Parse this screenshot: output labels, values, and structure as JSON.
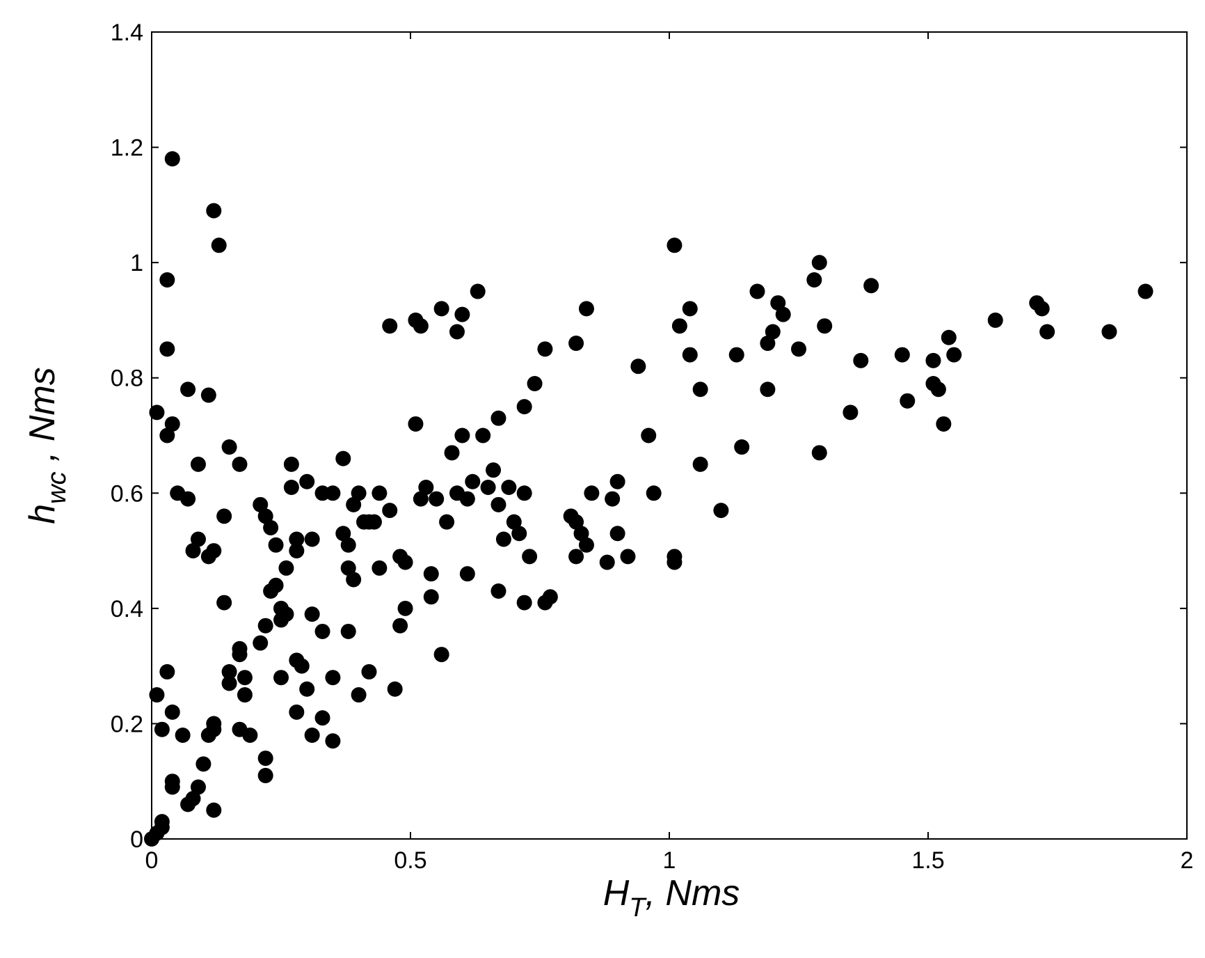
{
  "chart_data": {
    "type": "scatter",
    "xlabel": {
      "main": "H",
      "sub": "T",
      "unit": ", Nms"
    },
    "ylabel": {
      "main": "h",
      "sub": "wc",
      "unit": " , Nms"
    },
    "xlim": [
      0,
      2
    ],
    "ylim": [
      0,
      1.4
    ],
    "x_ticks": [
      {
        "value": 0,
        "label": "0"
      },
      {
        "value": 0.5,
        "label": "0.5"
      },
      {
        "value": 1,
        "label": "1"
      },
      {
        "value": 1.5,
        "label": "1.5"
      },
      {
        "value": 2,
        "label": "2"
      }
    ],
    "y_ticks": [
      {
        "value": 0,
        "label": "0"
      },
      {
        "value": 0.2,
        "label": "0.2"
      },
      {
        "value": 0.4,
        "label": "0.4"
      },
      {
        "value": 0.6,
        "label": "0.6"
      },
      {
        "value": 0.8,
        "label": "0.8"
      },
      {
        "value": 1,
        "label": "1"
      },
      {
        "value": 1.2,
        "label": "1.2"
      },
      {
        "value": 1.4,
        "label": "1.4"
      }
    ],
    "grid": false,
    "marker_color": "#000000",
    "points": [
      [
        0.0,
        0.0
      ],
      [
        0.01,
        0.01
      ],
      [
        0.02,
        0.02
      ],
      [
        0.02,
        0.03
      ],
      [
        0.04,
        1.18
      ],
      [
        0.12,
        1.09
      ],
      [
        0.13,
        1.03
      ],
      [
        0.03,
        0.97
      ],
      [
        0.03,
        0.85
      ],
      [
        0.01,
        0.74
      ],
      [
        0.04,
        0.72
      ],
      [
        0.03,
        0.7
      ],
      [
        0.07,
        0.78
      ],
      [
        0.11,
        0.77
      ],
      [
        0.15,
        0.68
      ],
      [
        0.17,
        0.65
      ],
      [
        0.09,
        0.65
      ],
      [
        0.05,
        0.6
      ],
      [
        0.07,
        0.59
      ],
      [
        0.14,
        0.56
      ],
      [
        0.09,
        0.52
      ],
      [
        0.08,
        0.5
      ],
      [
        0.11,
        0.49
      ],
      [
        0.12,
        0.5
      ],
      [
        0.14,
        0.41
      ],
      [
        0.01,
        0.25
      ],
      [
        0.02,
        0.19
      ],
      [
        0.03,
        0.29
      ],
      [
        0.04,
        0.22
      ],
      [
        0.04,
        0.1
      ],
      [
        0.04,
        0.09
      ],
      [
        0.06,
        0.18
      ],
      [
        0.07,
        0.06
      ],
      [
        0.08,
        0.07
      ],
      [
        0.09,
        0.09
      ],
      [
        0.1,
        0.13
      ],
      [
        0.11,
        0.18
      ],
      [
        0.12,
        0.2
      ],
      [
        0.12,
        0.19
      ],
      [
        0.12,
        0.05
      ],
      [
        0.15,
        0.29
      ],
      [
        0.15,
        0.27
      ],
      [
        0.17,
        0.33
      ],
      [
        0.17,
        0.32
      ],
      [
        0.17,
        0.19
      ],
      [
        0.18,
        0.28
      ],
      [
        0.18,
        0.25
      ],
      [
        0.19,
        0.18
      ],
      [
        0.21,
        0.34
      ],
      [
        0.22,
        0.37
      ],
      [
        0.22,
        0.14
      ],
      [
        0.22,
        0.11
      ],
      [
        0.21,
        0.58
      ],
      [
        0.22,
        0.56
      ],
      [
        0.23,
        0.54
      ],
      [
        0.23,
        0.43
      ],
      [
        0.24,
        0.44
      ],
      [
        0.24,
        0.51
      ],
      [
        0.25,
        0.4
      ],
      [
        0.25,
        0.38
      ],
      [
        0.25,
        0.28
      ],
      [
        0.26,
        0.47
      ],
      [
        0.26,
        0.39
      ],
      [
        0.27,
        0.65
      ],
      [
        0.27,
        0.61
      ],
      [
        0.28,
        0.52
      ],
      [
        0.28,
        0.5
      ],
      [
        0.28,
        0.31
      ],
      [
        0.29,
        0.3
      ],
      [
        0.28,
        0.22
      ],
      [
        0.3,
        0.62
      ],
      [
        0.3,
        0.26
      ],
      [
        0.31,
        0.52
      ],
      [
        0.31,
        0.39
      ],
      [
        0.31,
        0.18
      ],
      [
        0.33,
        0.6
      ],
      [
        0.33,
        0.36
      ],
      [
        0.33,
        0.21
      ],
      [
        0.35,
        0.6
      ],
      [
        0.35,
        0.28
      ],
      [
        0.35,
        0.17
      ],
      [
        0.37,
        0.66
      ],
      [
        0.37,
        0.53
      ],
      [
        0.38,
        0.51
      ],
      [
        0.38,
        0.47
      ],
      [
        0.38,
        0.36
      ],
      [
        0.39,
        0.58
      ],
      [
        0.39,
        0.45
      ],
      [
        0.4,
        0.6
      ],
      [
        0.4,
        0.25
      ],
      [
        0.41,
        0.55
      ],
      [
        0.42,
        0.55
      ],
      [
        0.42,
        0.29
      ],
      [
        0.43,
        0.55
      ],
      [
        0.44,
        0.6
      ],
      [
        0.44,
        0.47
      ],
      [
        0.46,
        0.57
      ],
      [
        0.46,
        0.89
      ],
      [
        0.47,
        0.26
      ],
      [
        0.48,
        0.49
      ],
      [
        0.48,
        0.37
      ],
      [
        0.49,
        0.48
      ],
      [
        0.49,
        0.4
      ],
      [
        0.51,
        0.9
      ],
      [
        0.52,
        0.89
      ],
      [
        0.51,
        0.72
      ],
      [
        0.52,
        0.59
      ],
      [
        0.53,
        0.61
      ],
      [
        0.54,
        0.46
      ],
      [
        0.54,
        0.42
      ],
      [
        0.55,
        0.59
      ],
      [
        0.56,
        0.92
      ],
      [
        0.56,
        0.32
      ],
      [
        0.57,
        0.55
      ],
      [
        0.58,
        0.67
      ],
      [
        0.59,
        0.6
      ],
      [
        0.59,
        0.88
      ],
      [
        0.6,
        0.91
      ],
      [
        0.6,
        0.7
      ],
      [
        0.61,
        0.59
      ],
      [
        0.61,
        0.46
      ],
      [
        0.62,
        0.62
      ],
      [
        0.63,
        0.95
      ],
      [
        0.64,
        0.7
      ],
      [
        0.65,
        0.61
      ],
      [
        0.66,
        0.64
      ],
      [
        0.67,
        0.73
      ],
      [
        0.67,
        0.58
      ],
      [
        0.68,
        0.52
      ],
      [
        0.67,
        0.43
      ],
      [
        0.69,
        0.61
      ],
      [
        0.7,
        0.55
      ],
      [
        0.71,
        0.53
      ],
      [
        0.72,
        0.75
      ],
      [
        0.72,
        0.6
      ],
      [
        0.72,
        0.41
      ],
      [
        0.73,
        0.49
      ],
      [
        0.74,
        0.79
      ],
      [
        0.76,
        0.85
      ],
      [
        0.76,
        0.41
      ],
      [
        0.77,
        0.42
      ],
      [
        0.81,
        0.56
      ],
      [
        0.82,
        0.86
      ],
      [
        0.82,
        0.55
      ],
      [
        0.83,
        0.53
      ],
      [
        0.82,
        0.49
      ],
      [
        0.84,
        0.51
      ],
      [
        0.84,
        0.92
      ],
      [
        0.85,
        0.6
      ],
      [
        0.88,
        0.48
      ],
      [
        0.89,
        0.59
      ],
      [
        0.9,
        0.62
      ],
      [
        0.9,
        0.53
      ],
      [
        0.92,
        0.49
      ],
      [
        0.94,
        0.82
      ],
      [
        0.96,
        0.7
      ],
      [
        0.97,
        0.6
      ],
      [
        1.01,
        1.03
      ],
      [
        1.01,
        0.49
      ],
      [
        1.01,
        0.48
      ],
      [
        1.02,
        0.89
      ],
      [
        1.04,
        0.92
      ],
      [
        1.04,
        0.84
      ],
      [
        1.06,
        0.78
      ],
      [
        1.06,
        0.65
      ],
      [
        1.1,
        0.57
      ],
      [
        1.13,
        0.84
      ],
      [
        1.14,
        0.68
      ],
      [
        1.17,
        0.95
      ],
      [
        1.19,
        0.86
      ],
      [
        1.19,
        0.78
      ],
      [
        1.2,
        0.88
      ],
      [
        1.21,
        0.93
      ],
      [
        1.22,
        0.91
      ],
      [
        1.25,
        0.85
      ],
      [
        1.28,
        0.97
      ],
      [
        1.29,
        1.0
      ],
      [
        1.29,
        0.67
      ],
      [
        1.3,
        0.89
      ],
      [
        1.35,
        0.74
      ],
      [
        1.37,
        0.83
      ],
      [
        1.39,
        0.96
      ],
      [
        1.45,
        0.84
      ],
      [
        1.46,
        0.76
      ],
      [
        1.51,
        0.83
      ],
      [
        1.51,
        0.79
      ],
      [
        1.52,
        0.78
      ],
      [
        1.53,
        0.72
      ],
      [
        1.54,
        0.87
      ],
      [
        1.55,
        0.84
      ],
      [
        1.63,
        0.9
      ],
      [
        1.71,
        0.93
      ],
      [
        1.72,
        0.92
      ],
      [
        1.73,
        0.88
      ],
      [
        1.85,
        0.88
      ],
      [
        1.92,
        0.95
      ]
    ]
  }
}
